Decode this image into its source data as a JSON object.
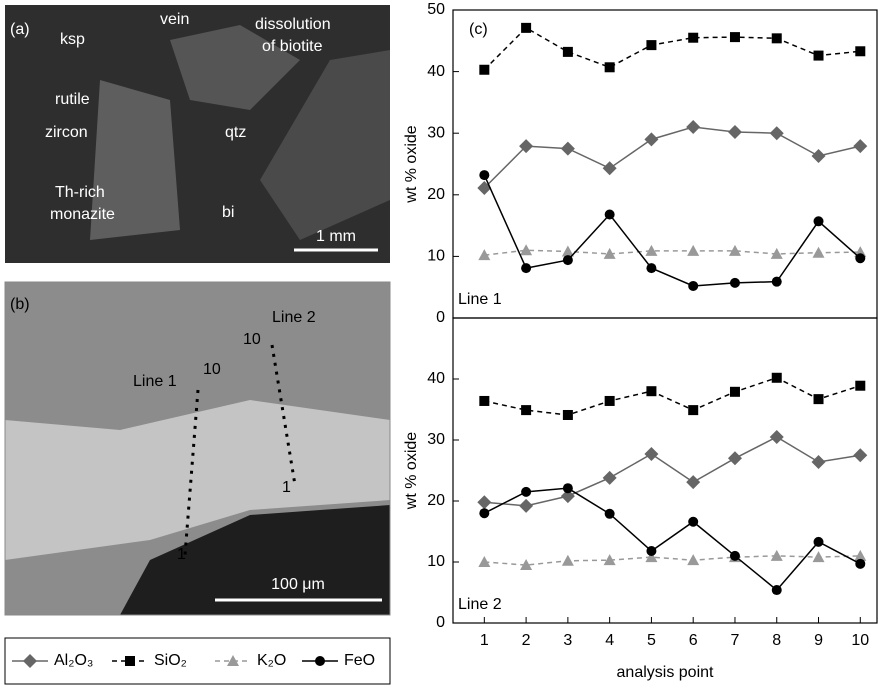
{
  "images": [
    {
      "label": "(a)",
      "annotations": [
        "ksp",
        "vein",
        "dissolution",
        "of biotite",
        "rutile",
        "zircon",
        "qtz",
        "Th-rich",
        "monazite",
        "bi"
      ],
      "scale_bar": "1 mm"
    },
    {
      "label": "(b)",
      "annotations": [
        "Line 1",
        "10",
        "Line 2",
        "10",
        "1",
        "1"
      ],
      "scale_bar": "100 μm"
    }
  ],
  "chart_data": [
    {
      "type": "line",
      "label": "(c)",
      "annotation": "Line 1",
      "ylabel": "wt % oxide",
      "x": [
        1,
        2,
        3,
        4,
        5,
        6,
        7,
        8,
        9,
        10
      ],
      "xlim": [
        0.25,
        10.4
      ],
      "ylim": [
        0,
        50
      ],
      "yticks": [
        0,
        10,
        20,
        30,
        40,
        50
      ],
      "series": [
        {
          "name": "Al₂O₃",
          "color": "#666666",
          "marker": "diamond",
          "dash": false,
          "values": [
            21.1,
            27.9,
            27.5,
            24.3,
            29.0,
            31.0,
            30.2,
            30.0,
            26.3,
            27.9
          ]
        },
        {
          "name": "SiO₂",
          "color": "#000000",
          "marker": "square",
          "dash": true,
          "values": [
            40.3,
            47.1,
            43.2,
            40.7,
            44.3,
            45.5,
            45.6,
            45.4,
            42.6,
            43.3
          ]
        },
        {
          "name": "K₂O",
          "color": "#999999",
          "marker": "triangle",
          "dash": true,
          "values": [
            10.2,
            11.0,
            10.8,
            10.4,
            10.9,
            10.9,
            10.9,
            10.4,
            10.6,
            10.7
          ]
        },
        {
          "name": "FeO",
          "color": "#000000",
          "marker": "circle",
          "dash": false,
          "values": [
            23.2,
            8.1,
            9.4,
            16.8,
            8.1,
            5.2,
            5.7,
            5.9,
            15.7,
            9.7
          ]
        }
      ]
    },
    {
      "type": "line",
      "annotation": "Line 2",
      "ylabel": "wt % oxide",
      "xlabel": "analysis point",
      "x": [
        1,
        2,
        3,
        4,
        5,
        6,
        7,
        8,
        9,
        10
      ],
      "xlim": [
        0.25,
        10.4
      ],
      "xticks": [
        1,
        2,
        3,
        4,
        5,
        6,
        7,
        8,
        9,
        10
      ],
      "ylim": [
        0,
        50
      ],
      "yticks": [
        0,
        10,
        20,
        30,
        40
      ],
      "series": [
        {
          "color": "#666666",
          "marker": "diamond",
          "dash": false,
          "values": [
            19.8,
            19.2,
            20.8,
            23.8,
            27.7,
            23.1,
            27.0,
            30.5,
            26.4,
            27.5
          ]
        },
        {
          "color": "#000000",
          "marker": "square",
          "dash": true,
          "values": [
            36.4,
            34.9,
            34.1,
            36.4,
            38.0,
            34.9,
            37.9,
            40.2,
            36.7,
            38.9
          ]
        },
        {
          "color": "#999999",
          "marker": "triangle",
          "dash": true,
          "values": [
            10.0,
            9.5,
            10.2,
            10.3,
            10.8,
            10.3,
            10.8,
            11.0,
            10.8,
            11.0
          ]
        },
        {
          "color": "#000000",
          "marker": "circle",
          "dash": false,
          "values": [
            18.0,
            21.5,
            22.1,
            17.9,
            11.8,
            16.6,
            11.0,
            5.4,
            13.3,
            9.7
          ]
        }
      ]
    }
  ]
}
